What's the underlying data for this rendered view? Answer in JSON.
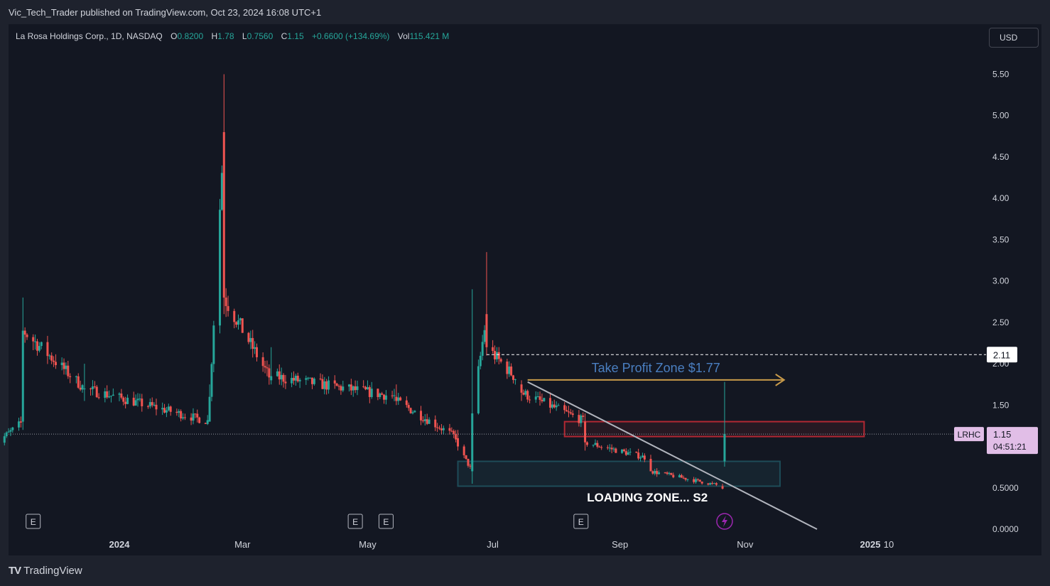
{
  "header": {
    "publisher_line": "Vic_Tech_Trader published on TradingView.com, Oct 23, 2024 16:08 UTC+1"
  },
  "legend": {
    "symbol": "La Rosa Holdings Corp., 1D, NASDAQ",
    "o_label": "O",
    "o_value": "0.8200",
    "h_label": "H",
    "h_value": "1.78",
    "l_label": "L",
    "l_value": "0.7560",
    "c_label": "C",
    "c_value": "1.15",
    "change": "+0.6600 (+134.69%)",
    "vol_label": "Vol",
    "vol_value": "115.421 M"
  },
  "currency_button": "USD",
  "price_tag": {
    "ticker": "LRHC",
    "price": "1.15",
    "countdown": "04:51:21"
  },
  "level_tag": "2.11",
  "annotations": {
    "take_profit": "Take Profit Zone $1.77",
    "loading_zone": "LOADING ZONE... S2"
  },
  "earnings_marker": "E",
  "brand": {
    "logo": "TV",
    "name": "TradingView"
  },
  "colors": {
    "up": "#26a69a",
    "down": "#ef5350",
    "tp_text": "#4a7fc1",
    "arrow": "#c79a4a",
    "box_red": "#b22833",
    "box_teal": "#1e4c58",
    "trend": "#b2b5be",
    "tag_bg": "#e1bee7"
  },
  "chart_data": {
    "type": "candlestick",
    "title": "La Rosa Holdings Corp., 1D, NASDAQ",
    "ylim": [
      0,
      5.7
    ],
    "y_ticks": [
      "5.50",
      "5.00",
      "4.50",
      "4.00",
      "3.50",
      "3.00",
      "2.50",
      "2.00",
      "1.50",
      "0.5000",
      "0.0000"
    ],
    "x_ticks": [
      "2024",
      "Mar",
      "May",
      "Jul",
      "Sep",
      "Nov",
      "2025",
      "10"
    ],
    "earnings_dates": [
      "2023-11-20",
      "2024-04-25",
      "2024-05-10",
      "2024-08-13"
    ],
    "key_candles": [
      {
        "date": "2023-10-31",
        "o": 0.98,
        "h": 1.05,
        "l": 0.92,
        "c": 1.0
      },
      {
        "date": "2023-11-15",
        "o": 1.3,
        "h": 2.8,
        "l": 1.2,
        "c": 2.4
      },
      {
        "date": "2023-12-15",
        "o": 1.7,
        "h": 2.0,
        "l": 1.55,
        "c": 1.7
      },
      {
        "date": "2024-02-14",
        "o": 1.3,
        "h": 1.75,
        "l": 1.3,
        "c": 1.6
      },
      {
        "date": "2024-02-21",
        "o": 4.8,
        "h": 5.5,
        "l": 2.6,
        "c": 2.8
      },
      {
        "date": "2024-03-15",
        "o": 1.8,
        "h": 2.2,
        "l": 1.75,
        "c": 1.85
      },
      {
        "date": "2024-05-15",
        "o": 1.6,
        "h": 1.75,
        "l": 1.5,
        "c": 1.55
      },
      {
        "date": "2024-06-14",
        "o": 1.1,
        "h": 1.2,
        "l": 0.95,
        "c": 1.0
      },
      {
        "date": "2024-06-21",
        "o": 0.7,
        "h": 2.9,
        "l": 0.55,
        "c": 1.4
      },
      {
        "date": "2024-06-28",
        "o": 2.6,
        "h": 3.35,
        "l": 2.1,
        "c": 2.2
      },
      {
        "date": "2024-07-15",
        "o": 1.75,
        "h": 1.8,
        "l": 1.55,
        "c": 1.65
      },
      {
        "date": "2024-08-15",
        "o": 1.3,
        "h": 1.4,
        "l": 0.95,
        "c": 1.05
      },
      {
        "date": "2024-09-16",
        "o": 0.85,
        "h": 0.9,
        "l": 0.7,
        "c": 0.7
      },
      {
        "date": "2024-10-21",
        "o": 0.52,
        "h": 0.55,
        "l": 0.48,
        "c": 0.49
      },
      {
        "date": "2024-10-22",
        "o": 0.82,
        "h": 1.78,
        "l": 0.756,
        "c": 1.15
      }
    ],
    "horizontal_level": 2.11,
    "last_price": 1.15,
    "take_profit_level": 1.77,
    "resistance_zone": [
      1.12,
      1.3
    ],
    "loading_zone": [
      0.52,
      0.82
    ],
    "trendline": [
      {
        "date": "2024-07-18",
        "price": 1.78
      },
      {
        "date": "2025-01-01",
        "price": 0.0
      }
    ]
  }
}
